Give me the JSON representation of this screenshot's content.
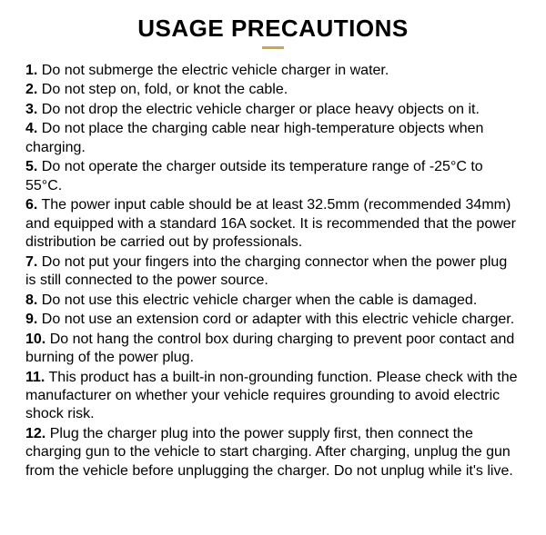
{
  "heading": "USAGE PRECAUTIONS",
  "accent_color": "#d6a63e",
  "text_color": "#000000",
  "background_color": "#ffffff",
  "items": [
    {
      "n": "1.",
      "text": " Do not submerge the electric vehicle charger in water."
    },
    {
      "n": "2.",
      "text": " Do not step on, fold, or knot the cable."
    },
    {
      "n": "3.",
      "text": " Do not drop the electric vehicle charger or place heavy objects on it."
    },
    {
      "n": "4.",
      "text": " Do not place the charging cable near high-temperature objects when charging."
    },
    {
      "n": "5.",
      "text": " Do not operate the charger outside its temperature range of -25°C to 55°C."
    },
    {
      "n": "6.",
      "text": " The power input cable should be at least 32.5mm (recommended 34mm) and equipped with a standard 16A socket. It is recommended that the power distribution be carried out by professionals."
    },
    {
      "n": "7.",
      "text": " Do not put your fingers into the charging connector when the power plug is still connected to the power source."
    },
    {
      "n": "8.",
      "text": " Do not use this electric vehicle charger when the cable is damaged."
    },
    {
      "n": "9.",
      "text": " Do not use an extension cord or adapter with this electric vehicle charger."
    },
    {
      "n": "10.",
      "text": " Do not hang the control box during charging to prevent poor contact and burning of the power plug."
    },
    {
      "n": "11.",
      "text": " This product has a built-in non-grounding function. Please check with the manufacturer on whether your vehicle requires grounding to avoid electric shock risk."
    },
    {
      "n": "12.",
      "text": " Plug the charger plug into the power supply first, then connect the charging gun to the vehicle to start charging. After charging, unplug the gun from the vehicle before unplugging the charger. Do not unplug while it's live."
    }
  ]
}
